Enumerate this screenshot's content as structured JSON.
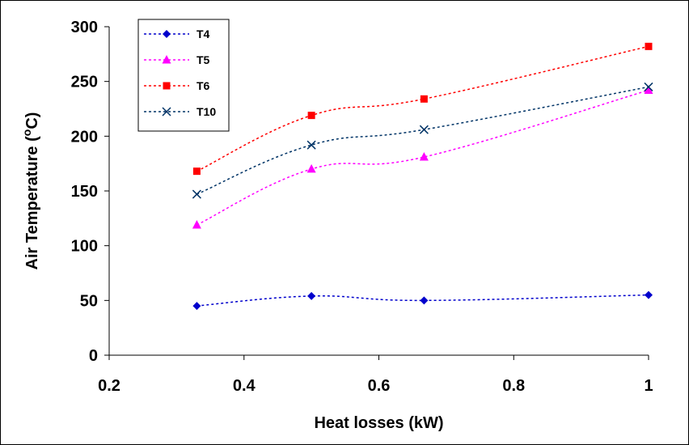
{
  "chart_data": {
    "type": "line",
    "title": "",
    "xlabel": "Heat losses (kW)",
    "ylabel_main": "Air Temperature (",
    "ylabel_sup": "o",
    "ylabel_end": "C)",
    "xlim": [
      0.2,
      1
    ],
    "ylim": [
      0,
      300
    ],
    "xticks": [
      "0.2",
      "0.4",
      "0.6",
      "0.8",
      "1"
    ],
    "yticks": [
      "0",
      "50",
      "100",
      "150",
      "200",
      "250",
      "300"
    ],
    "legend_position": "top-left",
    "grid": false,
    "series": [
      {
        "name": "T4",
        "color": "#0000cc",
        "marker": "diamond",
        "x": [
          0.33,
          0.5,
          0.667,
          1.0
        ],
        "y": [
          45,
          54,
          50,
          55
        ]
      },
      {
        "name": "T5",
        "color": "#ff00ff",
        "marker": "triangle",
        "x": [
          0.33,
          0.5,
          0.667,
          1.0
        ],
        "y": [
          119,
          170,
          181,
          242
        ]
      },
      {
        "name": "T6",
        "color": "#ff0000",
        "marker": "square",
        "x": [
          0.33,
          0.5,
          0.667,
          1.0
        ],
        "y": [
          168,
          219,
          234,
          282
        ]
      },
      {
        "name": "T10",
        "color": "#003366",
        "marker": "x",
        "x": [
          0.33,
          0.5,
          0.667,
          1.0
        ],
        "y": [
          147,
          192,
          206,
          245
        ]
      }
    ]
  }
}
